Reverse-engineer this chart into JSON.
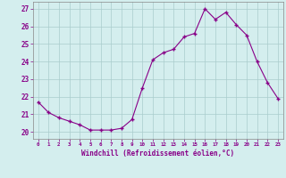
{
  "x": [
    0,
    1,
    2,
    3,
    4,
    5,
    6,
    7,
    8,
    9,
    10,
    11,
    12,
    13,
    14,
    15,
    16,
    17,
    18,
    19,
    20,
    21,
    22,
    23
  ],
  "y": [
    21.7,
    21.1,
    20.8,
    20.6,
    20.4,
    20.1,
    20.1,
    20.1,
    20.2,
    20.7,
    22.5,
    24.1,
    24.5,
    24.7,
    25.4,
    25.6,
    27.0,
    26.4,
    26.8,
    26.1,
    25.5,
    24.0,
    22.8,
    21.9
  ],
  "line_color": "#880088",
  "marker_color": "#880088",
  "bg_color": "#d4eeee",
  "grid_color": "#aacccc",
  "xlabel": "Windchill (Refroidissement éolien,°C)",
  "xlabel_color": "#880088",
  "yticks": [
    20,
    21,
    22,
    23,
    24,
    25,
    26,
    27
  ],
  "ylim": [
    19.6,
    27.4
  ],
  "xlim": [
    -0.5,
    23.5
  ],
  "tick_label_color": "#880088"
}
